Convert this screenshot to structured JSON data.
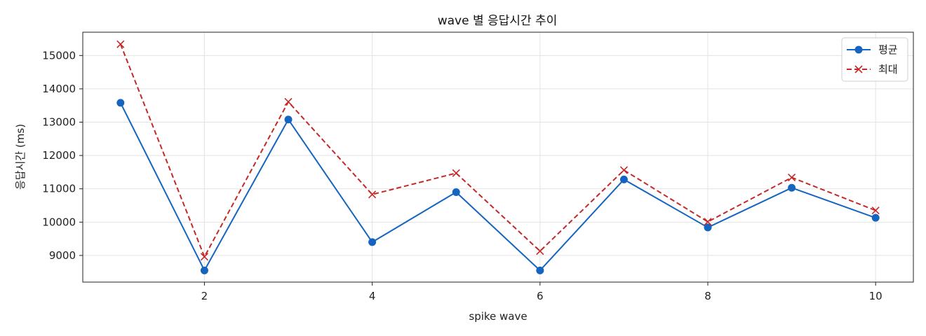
{
  "chart_data": {
    "type": "line",
    "title": "wave 별 응답시간 추이",
    "xlabel": "spike wave",
    "ylabel": "응답시간 (ms)",
    "x": [
      1,
      2,
      3,
      4,
      5,
      6,
      7,
      8,
      9,
      10
    ],
    "xlim": [
      0.55,
      10.45
    ],
    "ylim": [
      8200,
      15700
    ],
    "xticks": [
      2,
      4,
      6,
      8,
      10
    ],
    "xtick_labels": [
      "2",
      "4",
      "6",
      "8",
      "10"
    ],
    "yticks": [
      9000,
      10000,
      11000,
      12000,
      13000,
      14000,
      15000
    ],
    "ytick_labels": [
      "9000",
      "10000",
      "11000",
      "12000",
      "13000",
      "14000",
      "15000"
    ],
    "grid": true,
    "legend_position": "top-right",
    "series": [
      {
        "name": "평균",
        "color": "#1565c0",
        "line_style": "solid",
        "marker": "circle",
        "values": [
          13580,
          8550,
          13080,
          9400,
          10900,
          8550,
          11280,
          9840,
          11030,
          10130
        ]
      },
      {
        "name": "최대",
        "color": "#c62828",
        "line_style": "dashed",
        "marker": "x",
        "values": [
          15340,
          8960,
          13610,
          10830,
          11470,
          9130,
          11560,
          10010,
          11340,
          10350
        ]
      }
    ]
  }
}
